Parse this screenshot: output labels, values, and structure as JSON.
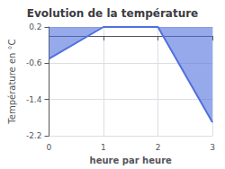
{
  "chart_data": {
    "type": "area",
    "title": "Evolution de la température",
    "xlabel": "heure par heure",
    "ylabel": "Température en °C",
    "x": [
      0,
      1,
      2,
      3
    ],
    "values": [
      -0.5,
      0.2,
      0.2,
      -1.9
    ],
    "xlim": [
      0,
      3
    ],
    "ylim": [
      -2.2,
      0.2
    ],
    "xticks": [
      0,
      1,
      2,
      3
    ],
    "yticks": [
      0.2,
      -0.6,
      -1.4,
      -2.2
    ],
    "grid": true
  }
}
